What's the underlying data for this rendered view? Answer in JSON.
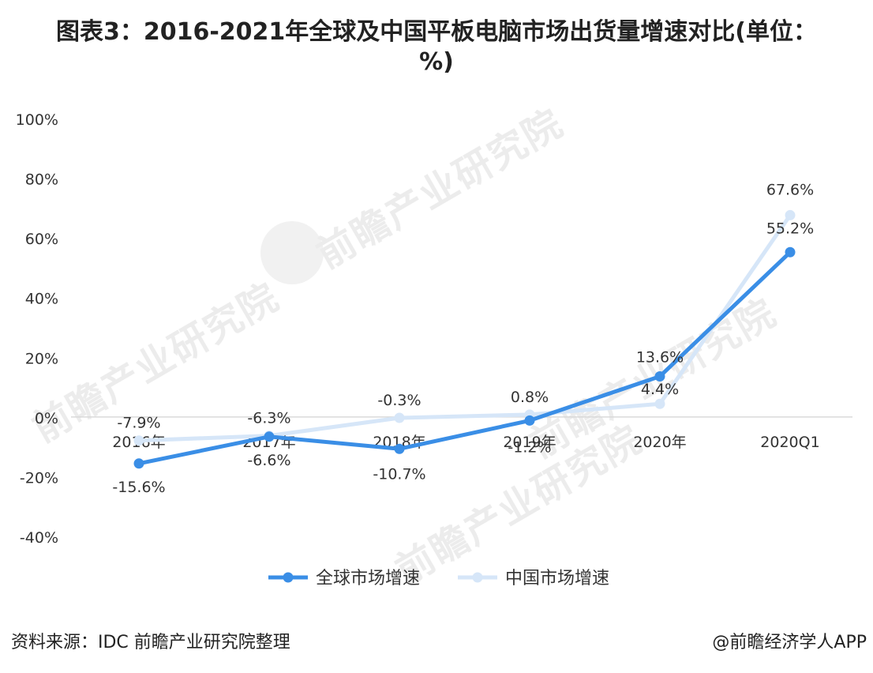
{
  "title": "图表3：2016-2021年全球及中国平板电脑市场出货量增速对比(单位：%)",
  "source": "资料来源：IDC 前瞻产业研究院整理",
  "brand": "@前瞻经济学人APP",
  "watermark": "前瞻产业研究院",
  "colors": {
    "global": "#3a8ee6",
    "china": "#d6e6f8",
    "axis": "#d9d9d9",
    "text": "#333333"
  },
  "chart_data": {
    "type": "line",
    "categories": [
      "2016年",
      "2017年",
      "2018年",
      "2019年",
      "2020年",
      "2020Q1"
    ],
    "series": [
      {
        "name": "全球市场增速",
        "values": [
          -15.6,
          -6.6,
          -10.7,
          -1.2,
          13.6,
          55.2
        ],
        "labels": [
          "-15.6%",
          "-6.6%",
          "-10.7%",
          "-1.2%",
          "13.6%",
          "55.2%"
        ]
      },
      {
        "name": "中国市场增速",
        "values": [
          -7.9,
          -6.3,
          -0.3,
          0.8,
          4.4,
          67.6
        ],
        "labels": [
          "-7.9%",
          "-6.3%",
          "-0.3%",
          "0.8%",
          "4.4%",
          "67.6%"
        ]
      }
    ],
    "ylim": [
      -40,
      100
    ],
    "yticks": [
      "-40%",
      "-20%",
      "0%",
      "20%",
      "40%",
      "60%",
      "80%",
      "100%"
    ],
    "ytick_values": [
      -40,
      -20,
      0,
      20,
      40,
      60,
      80,
      100
    ],
    "legend": "bottom-center",
    "grid": false
  }
}
